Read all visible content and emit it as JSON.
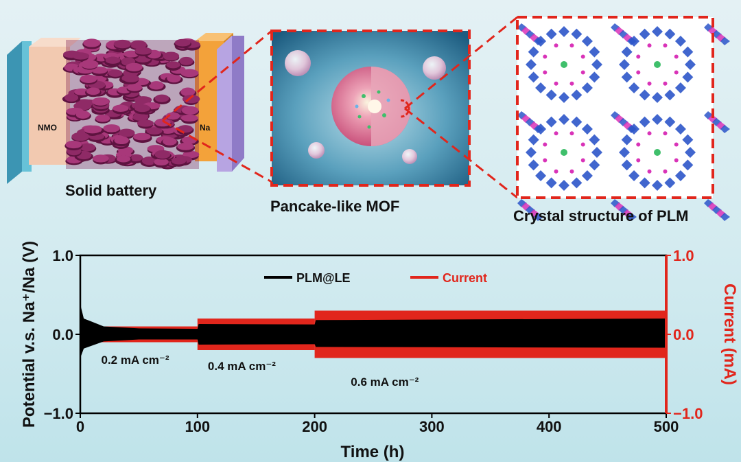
{
  "panels": {
    "battery": {
      "caption": "Solid battery",
      "left_label": "NMO",
      "right_label": "Na"
    },
    "mof": {
      "caption": "Pancake-like MOF"
    },
    "crystal": {
      "caption": "Crystal structure of PLM"
    }
  },
  "colors": {
    "accent_red": "#e1261c",
    "mof_pink": "#9e2f6e",
    "na_orange": "#f3a23a",
    "nmo_peach": "#f2c9b0",
    "crystal_blue": "#2c55c9",
    "crystal_magenta": "#d933b8"
  },
  "chart_data": {
    "type": "line",
    "xlabel": "Time (h)",
    "ylabel": "Potential v.s. Na⁺/Na (V)",
    "y2label": "Current (mA)",
    "xlim": [
      0,
      500
    ],
    "ylim": [
      -1.0,
      1.0
    ],
    "y2lim": [
      -1.0,
      1.0
    ],
    "xticks": [
      "0",
      "100",
      "200",
      "300",
      "400",
      "500"
    ],
    "yticks": [
      "1.0",
      "0.0",
      "−1.0"
    ],
    "y2ticks": [
      "1.0",
      "0.0",
      "−1.0"
    ],
    "legend": {
      "position": "top-center",
      "entries": [
        "PLM@LE",
        "Current"
      ]
    },
    "series": [
      {
        "name": "PLM@LE",
        "color": "#000000",
        "envelope": [
          {
            "t": 0,
            "high": 0.38,
            "low": -0.3
          },
          {
            "t": 3,
            "high": 0.2,
            "low": -0.18
          },
          {
            "t": 20,
            "high": 0.1,
            "low": -0.09
          },
          {
            "t": 50,
            "high": 0.075,
            "low": -0.065
          },
          {
            "t": 100,
            "high": 0.07,
            "low": -0.065
          },
          {
            "t": 101,
            "high": 0.13,
            "low": -0.13
          },
          {
            "t": 200,
            "high": 0.125,
            "low": -0.125
          },
          {
            "t": 201,
            "high": 0.18,
            "low": -0.16
          },
          {
            "t": 500,
            "high": 0.2,
            "low": -0.17
          }
        ]
      },
      {
        "name": "Current",
        "color": "#e1261c",
        "steps": [
          {
            "t_start": 0,
            "t_end": 100,
            "value": 0.1
          },
          {
            "t_start": 100,
            "t_end": 200,
            "value": 0.2
          },
          {
            "t_start": 200,
            "t_end": 500,
            "value": 0.3
          }
        ]
      }
    ],
    "annotations": [
      {
        "text": "0.2 mA cm⁻²",
        "t": 12,
        "y": -0.32
      },
      {
        "text": "0.4 mA cm⁻²",
        "t": 103,
        "y": -0.4
      },
      {
        "text": "0.6 mA cm⁻²",
        "t": 225,
        "y": -0.6
      }
    ]
  }
}
